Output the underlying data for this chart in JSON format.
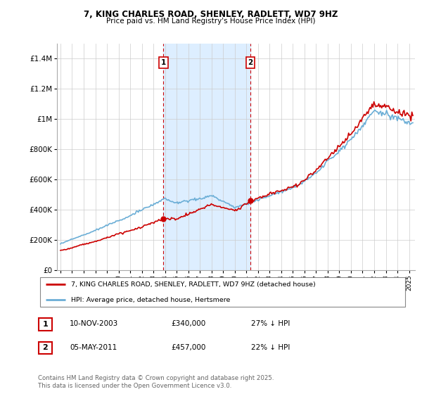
{
  "title": "7, KING CHARLES ROAD, SHENLEY, RADLETT, WD7 9HZ",
  "subtitle": "Price paid vs. HM Land Registry's House Price Index (HPI)",
  "legend_entries": [
    "7, KING CHARLES ROAD, SHENLEY, RADLETT, WD7 9HZ (detached house)",
    "HPI: Average price, detached house, Hertsmere"
  ],
  "annotation1_date": "10-NOV-2003",
  "annotation1_price": "£340,000",
  "annotation1_hpi": "27% ↓ HPI",
  "annotation2_date": "05-MAY-2011",
  "annotation2_price": "£457,000",
  "annotation2_hpi": "22% ↓ HPI",
  "footer": "Contains HM Land Registry data © Crown copyright and database right 2025.\nThis data is licensed under the Open Government Licence v3.0.",
  "red_color": "#cc0000",
  "blue_color": "#6baed6",
  "shade_color": "#ddeeff",
  "vline_color": "#cc0000",
  "annotation_box_color": "#cc0000",
  "ylim": [
    0,
    1500000
  ],
  "yticks": [
    0,
    200000,
    400000,
    600000,
    800000,
    1000000,
    1200000,
    1400000
  ],
  "xlim_start": 1994.7,
  "xlim_end": 2025.5,
  "vline1_x": 2003.86,
  "vline2_x": 2011.35,
  "point1_x": 2003.86,
  "point1_y": 340000,
  "point2_x": 2011.35,
  "point2_y": 457000
}
